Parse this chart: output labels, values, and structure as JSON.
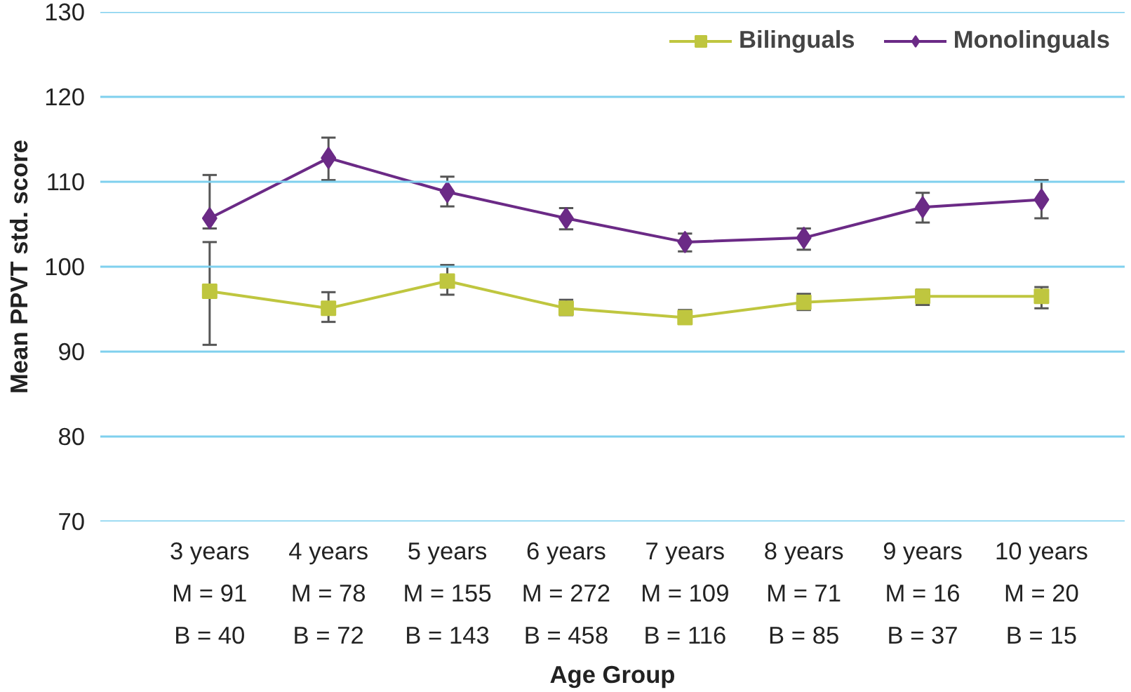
{
  "chart_data": {
    "type": "line",
    "xlabel": "Age Group",
    "ylabel": "Mean PPVT std. score",
    "categories": [
      "3 years\nM = 91\nB = 40",
      "4 years\nM = 78\nB = 72",
      "5 years\nM = 155\nB = 143",
      "6 years\nM = 272\nB = 458",
      "7 years\nM = 109\nB = 116",
      "8 years\nM = 71\nB = 85",
      "9 years\nM = 16\nB = 37",
      "10 years\nM = 20\nB = 15"
    ],
    "series": [
      {
        "name": "Bilinguals",
        "color": "#bfc63f",
        "marker": "square",
        "values": [
          97.1,
          95.1,
          98.3,
          95.1,
          94.0,
          95.8,
          96.5,
          96.5
        ],
        "errors": [
          [
            90.8,
            102.9
          ],
          [
            93.5,
            97.0
          ],
          [
            96.7,
            100.2
          ],
          [
            94.3,
            96.1
          ],
          [
            93.3,
            94.9
          ],
          [
            94.9,
            96.8
          ],
          [
            95.5,
            97.3
          ],
          [
            95.1,
            97.6
          ]
        ]
      },
      {
        "name": "Monolinguals",
        "color": "#6b2a86",
        "marker": "diamond",
        "values": [
          105.7,
          112.8,
          108.8,
          105.7,
          102.9,
          103.4,
          107.0,
          107.9
        ],
        "errors": [
          [
            104.5,
            110.8
          ],
          [
            110.2,
            115.2
          ],
          [
            107.1,
            110.6
          ],
          [
            104.4,
            106.9
          ],
          [
            101.8,
            103.9
          ],
          [
            102.0,
            104.5
          ],
          [
            105.2,
            108.7
          ],
          [
            105.7,
            110.2
          ]
        ]
      }
    ],
    "ylim": [
      70,
      130
    ],
    "yticks": [
      70,
      80,
      90,
      100,
      110,
      120,
      130
    ],
    "grid": "y",
    "legend": "top right",
    "line_style": "solid"
  }
}
